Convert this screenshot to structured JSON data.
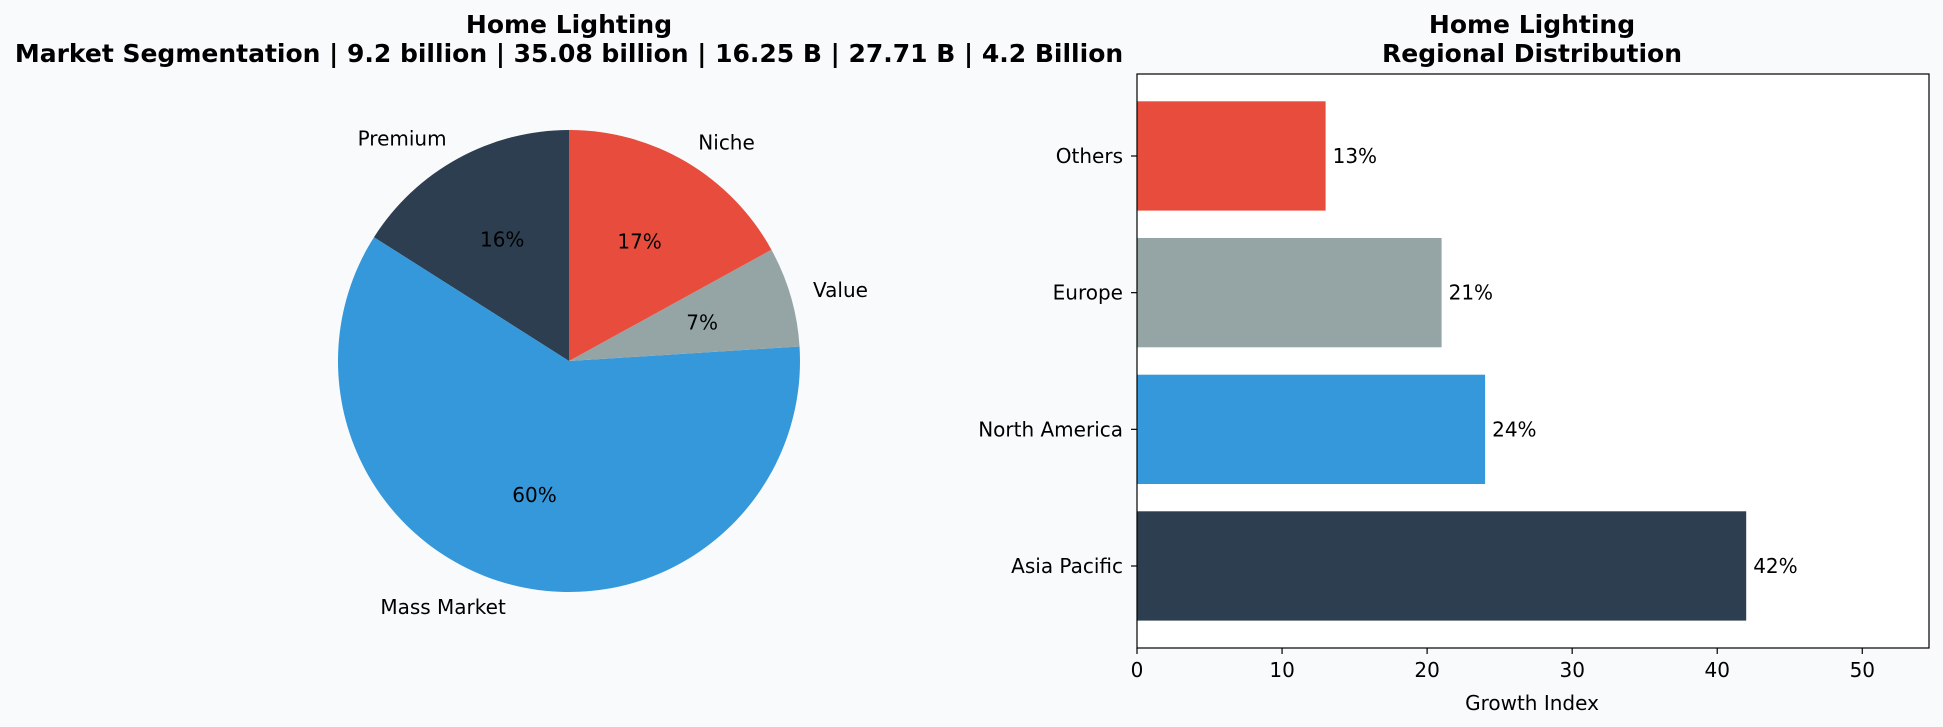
{
  "chart_data": [
    {
      "type": "pie",
      "title": "Home Lighting",
      "subtitle": "Market Segmentation | 9.2 billion | 35.08 billion | 16.25 B | 27.71 B | 4.2 Billion",
      "labels": [
        "Premium",
        "Mass Market",
        "Value",
        "Niche"
      ],
      "values": [
        16,
        60,
        7,
        17
      ],
      "value_labels": [
        "16%",
        "60%",
        "7%",
        "17%"
      ],
      "colors": [
        "#2c3e50",
        "#3498db",
        "#95a5a6",
        "#e74c3c"
      ],
      "start_angle_deg": 90,
      "direction": "counterclockwise"
    },
    {
      "type": "bar",
      "orientation": "horizontal",
      "title": "Home Lighting",
      "subtitle": "Regional Distribution",
      "categories": [
        "Asia Pacific",
        "North America",
        "Europe",
        "Others"
      ],
      "values": [
        42,
        24,
        21,
        13
      ],
      "value_labels": [
        "42%",
        "24%",
        "21%",
        "13%"
      ],
      "colors": [
        "#2c3e50",
        "#3498db",
        "#95a5a6",
        "#e74c3c"
      ],
      "xlabel": "Growth Index",
      "ylabel": "",
      "xlim": [
        0,
        54.6
      ],
      "xticks": [
        0,
        10,
        20,
        30,
        40,
        50
      ],
      "grid": false
    }
  ]
}
